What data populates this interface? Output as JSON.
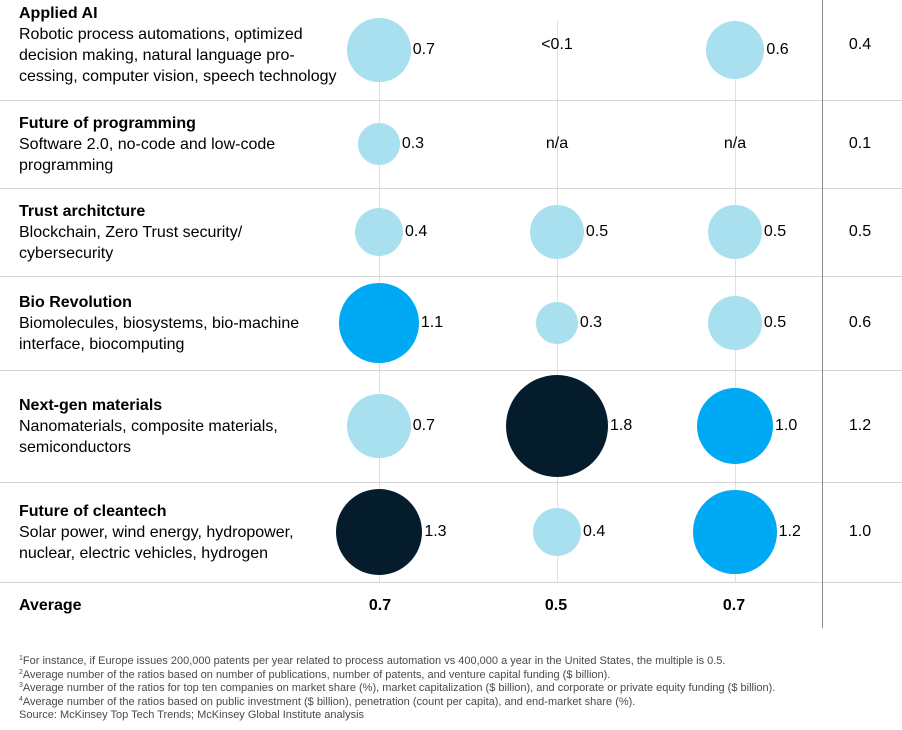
{
  "chart_data": {
    "type": "bubble-table",
    "rows": [
      {
        "title": "Applied AI",
        "desc_lines": [
          "Robotic process automations, optimized",
          "decision making, natural language pro-",
          "cessing, computer vision, speech technology"
        ],
        "values": [
          "0.7",
          "<0.1",
          "0.6"
        ],
        "right": "0.4"
      },
      {
        "title": "Future of programming",
        "desc_lines": [
          "Software 2.0, no-code and low-code",
          "programming"
        ],
        "values": [
          "0.3",
          "n/a",
          "n/a"
        ],
        "right": "0.1"
      },
      {
        "title": "Trust architcture",
        "desc_lines": [
          "Blockchain, Zero Trust security/",
          "cybersecurity"
        ],
        "values": [
          "0.4",
          "0.5",
          "0.5"
        ],
        "right": "0.5"
      },
      {
        "title": "Bio Revolution",
        "desc_lines": [
          "Biomolecules, biosystems, bio-machine",
          "interface, biocomputing"
        ],
        "values": [
          "1.1",
          "0.3",
          "0.5"
        ],
        "right": "0.6"
      },
      {
        "title": "Next-gen materials",
        "desc_lines": [
          "Nanomaterials, composite materials,",
          "semiconductors"
        ],
        "values": [
          "0.7",
          "1.8",
          "1.0"
        ],
        "right": "1.2"
      },
      {
        "title": "Future of cleantech",
        "desc_lines": [
          "Solar power, wind energy, hydropower,",
          "nuclear, electric vehicles, hydrogen"
        ],
        "values": [
          "1.3",
          "0.4",
          "1.2"
        ],
        "right": "1.0"
      }
    ],
    "average": {
      "label": "Average",
      "values": [
        "0.7",
        "0.5",
        "0.7"
      ]
    },
    "colors": {
      "low": "#a9e0ef",
      "mid": "#00a9f4",
      "high": "#051c2c"
    }
  },
  "footnotes": [
    {
      "sup": "1",
      "text": "For instance, if Europe issues 200,000 patents per year related to process automation vs 400,000 a year in the United States, the multiple is 0.5."
    },
    {
      "sup": "2",
      "text": "Average number of the ratios based on number of publications, number of patents, and venture capital funding ($ billion)."
    },
    {
      "sup": "3",
      "text": "Average number of the ratios for top ten companies on market share (%), market capitalization ($ billion), and corporate or private equity funding ($ billion)."
    },
    {
      "sup": "4",
      "text": "Average number of the ratios based on public investment ($ billion), penetration (count per capita), and end-market share (%)."
    },
    {
      "sup": "",
      "text": "Source: McKinsey Top Tech Trends; McKinsey Global Institute analysis"
    }
  ]
}
